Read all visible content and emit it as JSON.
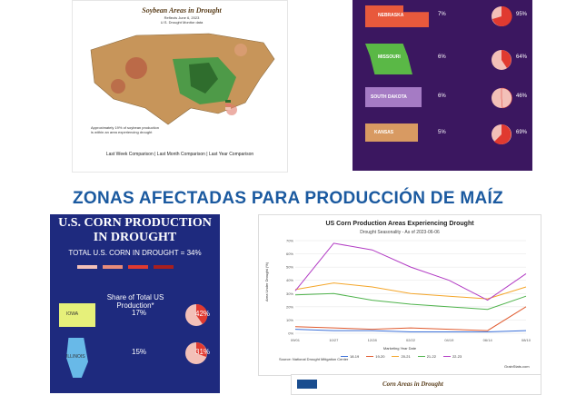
{
  "soy": {
    "title": "Soybean Areas in Drought",
    "subtitle": "Reflects June 6, 2023",
    "subtitle2": "U.S. Drought Monitor data",
    "note": "Approximately 19% of soybean production is within an area experiencing drought",
    "footer": "Last Week Comparison | Last Month Comparison | Last Year Comparison"
  },
  "states": [
    {
      "name": "NEBRASKA",
      "pct": "7%",
      "val": "95%",
      "color": "#e8593c"
    },
    {
      "name": "MISSOURI",
      "pct": "6%",
      "val": "64%",
      "color": "#5ab846"
    },
    {
      "name": "SOUTH DAKOTA",
      "pct": "6%",
      "val": "46%",
      "color": "#a57bc4"
    },
    {
      "name": "KANSAS",
      "pct": "5%",
      "val": "69%",
      "color": "#d89a62"
    }
  ],
  "heading": "ZONAS AFECTADAS PARA PRODUCCIÓN DE MAÍZ",
  "corn": {
    "title_line1": "U.S. CORN PRODUCTION",
    "title_line2": "IN DROUGHT",
    "total": "TOTAL U.S. CORN IN DROUGHT = 34%",
    "share": "Share of Total US Production*",
    "rows": [
      {
        "state": "IOWA",
        "share": "17%",
        "val": "42%"
      },
      {
        "state": "ILLINOIS",
        "share": "15%",
        "val": "31%"
      }
    ]
  },
  "chart": {
    "title": "US Corn Production Areas Experiencing Drought",
    "subtitle": "Drought Seasonality - As of 2023-06-06",
    "ylabel": "Area Under Drought (%)",
    "xlabel": "Marketing Year Date",
    "source": "Source: National Drought Mitigation Center",
    "brand": "GrainStats.com"
  },
  "corn_map": {
    "title": "Corn Areas in Drought"
  },
  "chart_data": {
    "type": "line",
    "title": "US Corn Production Areas Experiencing Drought",
    "xlabel": "Marketing Year Date",
    "ylabel": "Area Under Drought (%)",
    "x": [
      "09/01",
      "10/27",
      "12/28",
      "02/22",
      "04/19",
      "06/14",
      "08/10"
    ],
    "ylim": [
      0,
      70
    ],
    "series": [
      {
        "name": "18-19",
        "color": "#3a6fd8",
        "values": [
          3,
          2,
          2,
          1,
          1,
          1,
          2
        ]
      },
      {
        "name": "19-20",
        "color": "#e05b2f",
        "values": [
          5,
          4,
          3,
          4,
          3,
          2,
          20
        ]
      },
      {
        "name": "20-21",
        "color": "#f4a62a",
        "values": [
          33,
          38,
          35,
          30,
          28,
          26,
          35
        ]
      },
      {
        "name": "21-22",
        "color": "#4fb34c",
        "values": [
          29,
          30,
          25,
          22,
          20,
          18,
          28
        ]
      },
      {
        "name": "22-23",
        "color": "#b23cc4",
        "values": [
          32,
          68,
          63,
          50,
          40,
          25,
          45
        ]
      }
    ]
  },
  "colors": {
    "purple_panel": "#3b1760",
    "corn_panel": "#1e2a7e",
    "heading": "#1b5aa0"
  }
}
